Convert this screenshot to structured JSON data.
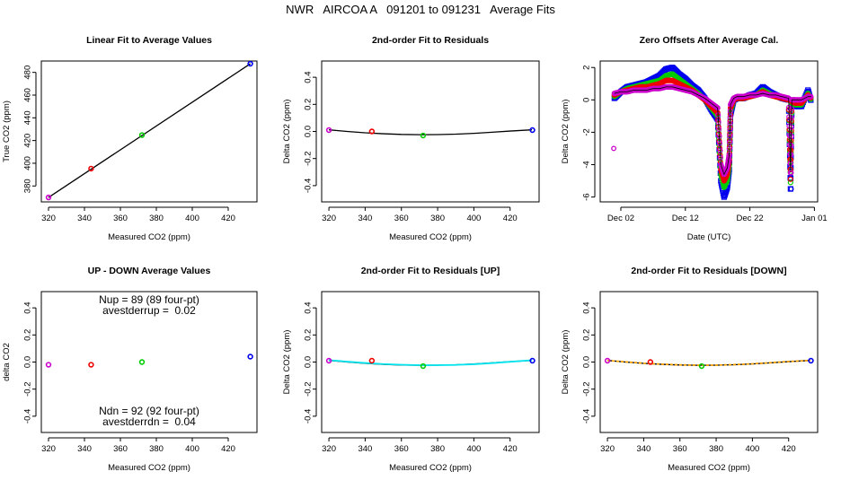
{
  "figure_title": "NWR   AIRCOA A   091201 to 091231   Average Fits",
  "colors": {
    "purple": "#cc00cc",
    "red": "#ee0000",
    "green": "#00cc00",
    "blue": "#0000ee",
    "black": "#000000",
    "cyan": "#00e5ee",
    "orange": "#ffa500"
  },
  "chart_data": [
    {
      "id": "p1",
      "type": "scatter",
      "title": "Linear Fit to Average Values",
      "xlabel": "Measured CO2 (ppm)",
      "ylabel": "True CO2 (ppm)",
      "xlim": [
        316,
        436
      ],
      "ylim": [
        366,
        490
      ],
      "xticks": [
        {
          "v": 320,
          "label": "320"
        },
        {
          "v": 340,
          "label": "340"
        },
        {
          "v": 360,
          "label": "360"
        },
        {
          "v": 380,
          "label": "380"
        },
        {
          "v": 400,
          "label": "400"
        },
        {
          "v": 420,
          "label": "420"
        }
      ],
      "yticks": [
        {
          "v": 380,
          "label": "380"
        },
        {
          "v": 400,
          "label": "400"
        },
        {
          "v": 420,
          "label": "420"
        },
        {
          "v": 440,
          "label": "440"
        },
        {
          "v": 460,
          "label": "460"
        },
        {
          "v": 480,
          "label": "480"
        }
      ],
      "points": [
        {
          "x": 320.0,
          "y": 369.9,
          "color": "purple"
        },
        {
          "x": 343.7,
          "y": 395.3,
          "color": "red"
        },
        {
          "x": 372.0,
          "y": 424.8,
          "color": "green"
        },
        {
          "x": 432.3,
          "y": 487.6,
          "color": "blue"
        }
      ],
      "lines": [
        {
          "x": [
            320.0,
            432.3
          ],
          "y": [
            369.9,
            487.6
          ],
          "color": "black"
        }
      ],
      "annotations": []
    },
    {
      "id": "p2",
      "type": "scatter",
      "title": "2nd-order Fit to Residuals",
      "xlabel": "Measured CO2 (ppm)",
      "ylabel": "Delta CO2 (ppm)",
      "xlim": [
        316,
        436
      ],
      "ylim": [
        -0.52,
        0.52
      ],
      "xticks": [
        {
          "v": 320,
          "label": "320"
        },
        {
          "v": 340,
          "label": "340"
        },
        {
          "v": 360,
          "label": "360"
        },
        {
          "v": 380,
          "label": "380"
        },
        {
          "v": 400,
          "label": "400"
        },
        {
          "v": 420,
          "label": "420"
        }
      ],
      "yticks": [
        {
          "v": -0.4,
          "label": "-0.4"
        },
        {
          "v": -0.2,
          "label": "-0.2"
        },
        {
          "v": 0.0,
          "label": "0.0"
        },
        {
          "v": 0.2,
          "label": "0.2"
        },
        {
          "v": 0.4,
          "label": "0.4"
        }
      ],
      "points": [
        {
          "x": 320.0,
          "y": 0.01,
          "color": "purple"
        },
        {
          "x": 343.7,
          "y": 0.0,
          "color": "red"
        },
        {
          "x": 372.0,
          "y": -0.03,
          "color": "green"
        },
        {
          "x": 432.3,
          "y": 0.01,
          "color": "blue"
        }
      ],
      "lines": [
        {
          "x": [
            320,
            330,
            340,
            350,
            360,
            370,
            380,
            390,
            400,
            410,
            420,
            432
          ],
          "y": [
            0.012,
            0.0,
            -0.01,
            -0.017,
            -0.022,
            -0.024,
            -0.023,
            -0.02,
            -0.014,
            -0.006,
            0.003,
            0.012
          ],
          "color": "black"
        }
      ],
      "annotations": []
    },
    {
      "id": "p3",
      "type": "scatter",
      "title": "Zero Offsets After Average Cal.",
      "xlabel": "Date (UTC)",
      "ylabel": "Delta CO2 (ppm)",
      "xlim": [
        -2.2,
        31.5
      ],
      "ylim": [
        -6.3,
        2.4
      ],
      "xticks": [
        {
          "v": 1,
          "label": "Dec 02"
        },
        {
          "v": 11,
          "label": "Dec 12"
        },
        {
          "v": 21,
          "label": "Dec 22"
        },
        {
          "v": 31,
          "label": "Jan 01"
        }
      ],
      "yticks": [
        {
          "v": -6,
          "label": "-6"
        },
        {
          "v": -4,
          "label": "-4"
        },
        {
          "v": -2,
          "label": "-2"
        },
        {
          "v": 0,
          "label": "0"
        },
        {
          "v": 2,
          "label": "2"
        }
      ],
      "series": [
        {
          "name": "blue",
          "color": "blue",
          "x": [
            0,
            1,
            2,
            3,
            4,
            5,
            6,
            7,
            8,
            9,
            10,
            11,
            12,
            13,
            14,
            15,
            16,
            16.5,
            17,
            17.5,
            17.8,
            18,
            18.5,
            19,
            19.5,
            20,
            21,
            22,
            23,
            24,
            25,
            26,
            27,
            27.3,
            27.5,
            28,
            29,
            30,
            30.5
          ],
          "y": [
            0.1,
            0.5,
            0.8,
            0.9,
            1.0,
            1.1,
            1.3,
            1.5,
            1.9,
            2.0,
            1.6,
            1.3,
            0.9,
            0.6,
            0.1,
            -0.6,
            -1.2,
            -5.0,
            -6.0,
            -5.4,
            -4.3,
            -0.9,
            0.0,
            0.1,
            0.1,
            0.1,
            0.3,
            0.4,
            0.8,
            0.5,
            0.3,
            0.1,
            0.0,
            -5.5,
            -0.3,
            -0.4,
            -0.4,
            0.6,
            -0.1
          ]
        },
        {
          "name": "green",
          "color": "green",
          "x": [
            0,
            1,
            2,
            3,
            4,
            5,
            6,
            7,
            8,
            9,
            10,
            11,
            12,
            13,
            14,
            15,
            16,
            16.5,
            17,
            17.5,
            17.8,
            18,
            18.5,
            19,
            19.5,
            20,
            21,
            22,
            23,
            24,
            25,
            26,
            27,
            27.3,
            27.5,
            28,
            29,
            30,
            30.5
          ],
          "y": [
            0.2,
            0.5,
            0.7,
            0.8,
            0.9,
            1.0,
            1.1,
            1.2,
            1.5,
            1.6,
            1.3,
            1.0,
            0.7,
            0.4,
            0.0,
            -0.5,
            -1.0,
            -4.6,
            -5.4,
            -5.0,
            -4.0,
            -0.7,
            0.0,
            0.1,
            0.1,
            0.1,
            0.2,
            0.3,
            0.6,
            0.4,
            0.2,
            0.1,
            0.0,
            -5.1,
            -0.2,
            -0.3,
            -0.3,
            0.4,
            0.0
          ]
        },
        {
          "name": "red",
          "color": "red",
          "x": [
            0,
            1,
            2,
            3,
            4,
            5,
            6,
            7,
            8,
            9,
            10,
            11,
            12,
            13,
            14,
            15,
            16,
            16.5,
            17,
            17.5,
            17.8,
            18,
            18.5,
            19,
            19.5,
            20,
            21,
            22,
            23,
            24,
            25,
            26,
            27,
            27.3,
            27.5,
            28,
            29,
            30,
            30.5
          ],
          "y": [
            0.3,
            0.5,
            0.6,
            0.7,
            0.8,
            0.8,
            0.9,
            1.0,
            1.2,
            1.2,
            1.0,
            0.8,
            0.6,
            0.3,
            0.0,
            -0.4,
            -0.8,
            -4.3,
            -5.0,
            -4.6,
            -3.7,
            -0.5,
            0.0,
            0.1,
            0.1,
            0.1,
            0.2,
            0.3,
            0.5,
            0.3,
            0.2,
            0.1,
            0.0,
            -4.9,
            -0.1,
            -0.2,
            -0.2,
            0.3,
            0.1
          ]
        },
        {
          "name": "purple",
          "color": "purple",
          "x": [
            0,
            1,
            2,
            3,
            4,
            5,
            6,
            7,
            8,
            9,
            10,
            11,
            12,
            13,
            14,
            15,
            16,
            16.5,
            17,
            17.5,
            17.8,
            18,
            18.5,
            19,
            19.5,
            20,
            21,
            22,
            23,
            24,
            25,
            26,
            27,
            27.3,
            27.5,
            28,
            29,
            30,
            30.5
          ],
          "y": [
            0.4,
            0.5,
            0.5,
            0.6,
            0.6,
            0.6,
            0.7,
            0.7,
            0.8,
            0.8,
            0.7,
            0.6,
            0.5,
            0.3,
            0.1,
            -0.2,
            -0.5,
            -4.0,
            -4.6,
            -4.2,
            -3.4,
            -0.3,
            0.1,
            0.2,
            0.2,
            0.2,
            0.3,
            0.3,
            0.4,
            0.3,
            0.3,
            0.2,
            0.1,
            -4.5,
            0.0,
            0.0,
            0.0,
            0.2,
            0.2
          ]
        }
      ],
      "extra_points": [
        {
          "x": -0.1,
          "y": -3.0,
          "color": "purple"
        },
        {
          "x": 27.4,
          "y": -5.5,
          "color": "blue"
        },
        {
          "x": 27.4,
          "y": -4.5,
          "color": "purple"
        }
      ],
      "annotations": []
    },
    {
      "id": "p4",
      "type": "scatter",
      "title": "UP - DOWN Average Values",
      "xlabel": "Measured CO2 (ppm)",
      "ylabel": "delta CO2",
      "xlim": [
        316,
        436
      ],
      "ylim": [
        -0.52,
        0.52
      ],
      "xticks": [
        {
          "v": 320,
          "label": "320"
        },
        {
          "v": 340,
          "label": "340"
        },
        {
          "v": 360,
          "label": "360"
        },
        {
          "v": 380,
          "label": "380"
        },
        {
          "v": 400,
          "label": "400"
        },
        {
          "v": 420,
          "label": "420"
        }
      ],
      "yticks": [
        {
          "v": -0.4,
          "label": "-0.4"
        },
        {
          "v": -0.2,
          "label": "-0.2"
        },
        {
          "v": 0.0,
          "label": "0.0"
        },
        {
          "v": 0.2,
          "label": "0.2"
        },
        {
          "v": 0.4,
          "label": "0.4"
        }
      ],
      "points": [
        {
          "x": 320.0,
          "y": -0.02,
          "color": "purple"
        },
        {
          "x": 343.7,
          "y": -0.02,
          "color": "red"
        },
        {
          "x": 372.0,
          "y": 0.0,
          "color": "green"
        },
        {
          "x": 432.3,
          "y": 0.04,
          "color": "blue"
        }
      ],
      "lines": [],
      "annotations": [
        {
          "text": "Nup = 89 (89 four-pt)",
          "x": 376,
          "y": 0.46
        },
        {
          "text": "avestderrup =  0.02",
          "x": 376,
          "y": 0.38
        },
        {
          "text": "Ndn = 92 (92 four-pt)",
          "x": 376,
          "y": -0.36
        },
        {
          "text": "avestderrdn =  0.04",
          "x": 376,
          "y": -0.44
        }
      ]
    },
    {
      "id": "p5",
      "type": "scatter",
      "title": "2nd-order Fit to Residuals [UP]",
      "xlabel": "Measured CO2 (ppm)",
      "ylabel": "Delta CO2 (ppm)",
      "xlim": [
        316,
        436
      ],
      "ylim": [
        -0.52,
        0.52
      ],
      "xticks": [
        {
          "v": 320,
          "label": "320"
        },
        {
          "v": 340,
          "label": "340"
        },
        {
          "v": 360,
          "label": "360"
        },
        {
          "v": 380,
          "label": "380"
        },
        {
          "v": 400,
          "label": "400"
        },
        {
          "v": 420,
          "label": "420"
        }
      ],
      "yticks": [
        {
          "v": -0.4,
          "label": "-0.4"
        },
        {
          "v": -0.2,
          "label": "-0.2"
        },
        {
          "v": 0.0,
          "label": "0.0"
        },
        {
          "v": 0.2,
          "label": "0.2"
        },
        {
          "v": 0.4,
          "label": "0.4"
        }
      ],
      "points": [
        {
          "x": 320.0,
          "y": 0.01,
          "color": "purple"
        },
        {
          "x": 343.7,
          "y": 0.01,
          "color": "red"
        },
        {
          "x": 372.0,
          "y": -0.03,
          "color": "green"
        },
        {
          "x": 432.3,
          "y": 0.01,
          "color": "blue"
        }
      ],
      "lines": [
        {
          "x": [
            320,
            330,
            340,
            350,
            360,
            370,
            380,
            390,
            400,
            410,
            420,
            432
          ],
          "y": [
            0.012,
            0.0,
            -0.01,
            -0.017,
            -0.022,
            -0.024,
            -0.023,
            -0.02,
            -0.014,
            -0.006,
            0.003,
            0.012
          ],
          "color": "black"
        },
        {
          "x": [
            320,
            330,
            340,
            350,
            360,
            370,
            380,
            390,
            400,
            410,
            420,
            432
          ],
          "y": [
            0.014,
            0.003,
            -0.007,
            -0.015,
            -0.02,
            -0.023,
            -0.023,
            -0.021,
            -0.016,
            -0.008,
            0.002,
            0.013
          ],
          "color": "cyan"
        }
      ],
      "annotations": []
    },
    {
      "id": "p6",
      "type": "scatter",
      "title": "2nd-order Fit to Residuals [DOWN]",
      "xlabel": "Measured CO2 (ppm)",
      "ylabel": "Delta CO2 (ppm)",
      "xlim": [
        316,
        436
      ],
      "ylim": [
        -0.52,
        0.52
      ],
      "xticks": [
        {
          "v": 320,
          "label": "320"
        },
        {
          "v": 340,
          "label": "340"
        },
        {
          "v": 360,
          "label": "360"
        },
        {
          "v": 380,
          "label": "380"
        },
        {
          "v": 400,
          "label": "400"
        },
        {
          "v": 420,
          "label": "420"
        }
      ],
      "yticks": [
        {
          "v": -0.4,
          "label": "-0.4"
        },
        {
          "v": -0.2,
          "label": "-0.2"
        },
        {
          "v": 0.0,
          "label": "0.0"
        },
        {
          "v": 0.2,
          "label": "0.2"
        },
        {
          "v": 0.4,
          "label": "0.4"
        }
      ],
      "points": [
        {
          "x": 320.0,
          "y": 0.01,
          "color": "purple"
        },
        {
          "x": 343.7,
          "y": 0.0,
          "color": "red"
        },
        {
          "x": 372.0,
          "y": -0.03,
          "color": "green"
        },
        {
          "x": 432.3,
          "y": 0.01,
          "color": "blue"
        }
      ],
      "lines": [
        {
          "x": [
            320,
            330,
            340,
            350,
            360,
            370,
            380,
            390,
            400,
            410,
            420,
            432
          ],
          "y": [
            0.012,
            0.0,
            -0.01,
            -0.017,
            -0.022,
            -0.024,
            -0.023,
            -0.02,
            -0.014,
            -0.006,
            0.003,
            0.012
          ],
          "color": "black"
        },
        {
          "x": [
            320,
            330,
            340,
            350,
            360,
            370,
            380,
            390,
            400,
            410,
            420,
            432
          ],
          "y": [
            0.012,
            0.001,
            -0.009,
            -0.016,
            -0.021,
            -0.023,
            -0.023,
            -0.019,
            -0.013,
            -0.005,
            0.004,
            0.012
          ],
          "color": "orange",
          "dashed": true
        }
      ],
      "annotations": []
    }
  ]
}
